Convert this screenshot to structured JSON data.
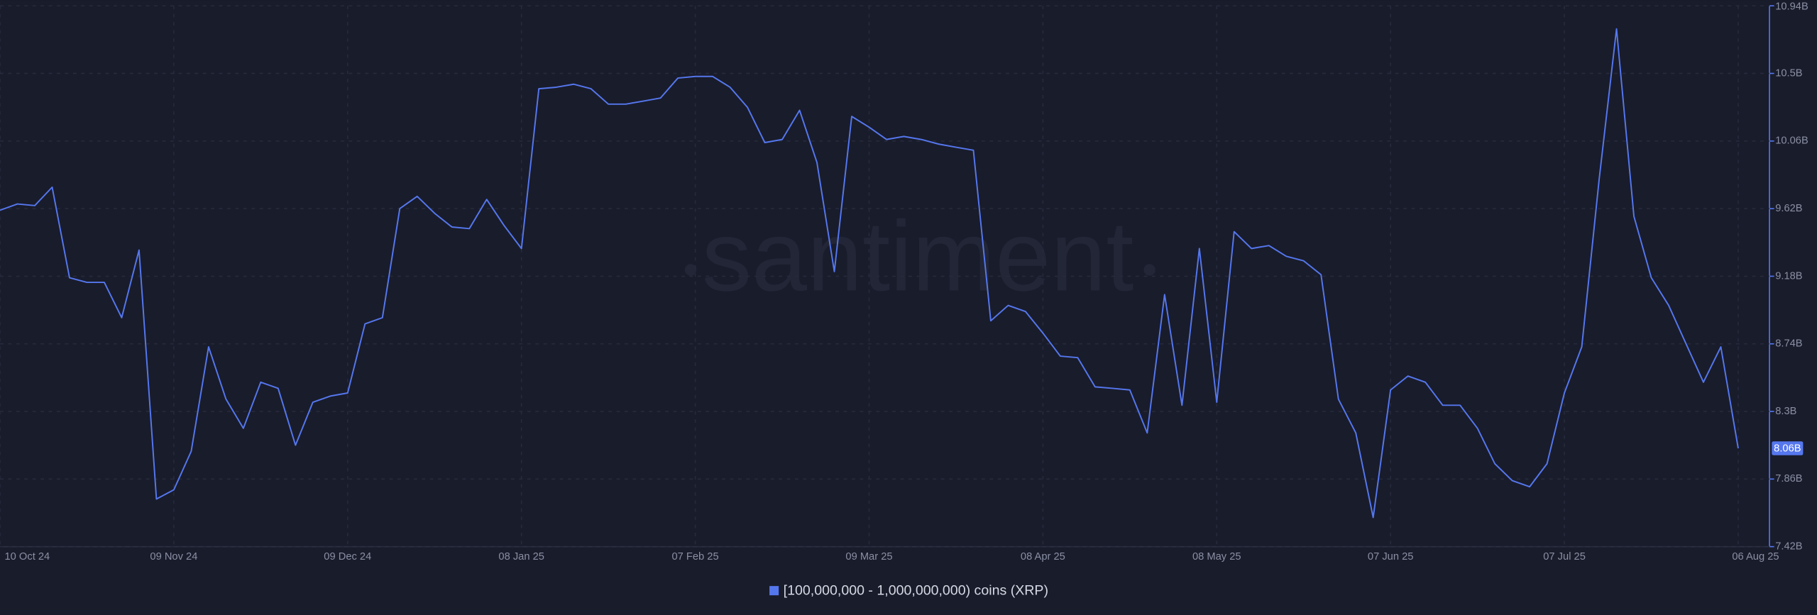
{
  "chart_data": {
    "type": "line",
    "watermark": "santiment",
    "categories": [
      "10 Oct 24",
      null,
      null,
      null,
      null,
      null,
      null,
      null,
      null,
      null,
      "09 Nov 24",
      null,
      null,
      null,
      null,
      null,
      null,
      null,
      null,
      null,
      "09 Dec 24",
      null,
      null,
      null,
      null,
      null,
      null,
      null,
      null,
      null,
      "08 Jan 25",
      null,
      null,
      null,
      null,
      null,
      null,
      null,
      null,
      null,
      "07 Feb 25",
      null,
      null,
      null,
      null,
      null,
      null,
      null,
      null,
      null,
      "09 Mar 25",
      null,
      null,
      null,
      null,
      null,
      null,
      null,
      null,
      null,
      "08 Apr 25",
      null,
      null,
      null,
      null,
      null,
      null,
      null,
      null,
      null,
      "08 May 25",
      null,
      null,
      null,
      null,
      null,
      null,
      null,
      null,
      null,
      "07 Jun 25",
      null,
      null,
      null,
      null,
      null,
      null,
      null,
      null,
      null,
      "07 Jul 25",
      null,
      null,
      null,
      null,
      null,
      null,
      null,
      null,
      null,
      "06 Aug 25"
    ],
    "series": [
      {
        "name": "[100,000,000 - 1,000,000,000) coins (XRP)",
        "color": "#5577ee",
        "values": [
          9.61,
          9.65,
          9.64,
          9.76,
          9.17,
          9.14,
          9.14,
          8.91,
          9.35,
          7.73,
          7.79,
          8.04,
          8.72,
          8.38,
          8.19,
          8.49,
          8.45,
          8.08,
          8.36,
          8.4,
          8.42,
          8.87,
          8.91,
          9.62,
          9.7,
          9.59,
          9.5,
          9.49,
          9.68,
          9.51,
          9.36,
          10.4,
          10.41,
          10.43,
          10.4,
          10.3,
          10.3,
          10.32,
          10.34,
          10.47,
          10.48,
          10.48,
          10.41,
          10.28,
          10.05,
          10.07,
          10.26,
          9.92,
          9.21,
          10.22,
          10.15,
          10.07,
          10.09,
          10.07,
          10.04,
          10.02,
          10.0,
          8.89,
          8.99,
          8.95,
          8.81,
          8.66,
          8.65,
          8.46,
          8.45,
          8.44,
          8.16,
          9.06,
          8.34,
          9.36,
          8.36,
          9.47,
          9.36,
          9.38,
          9.31,
          9.28,
          9.19,
          8.38,
          8.16,
          7.61,
          8.44,
          8.53,
          8.49,
          8.34,
          8.34,
          8.19,
          7.96,
          7.85,
          7.81,
          7.96,
          8.42,
          8.72,
          9.81,
          10.79,
          9.57,
          9.17,
          8.99,
          8.74,
          8.49,
          8.72,
          8.06
        ]
      }
    ],
    "current": {
      "value": 8.06,
      "label": "8.06B"
    },
    "ylim": [
      7.42,
      10.94
    ],
    "yticks": [
      {
        "value": 7.42,
        "label": "7.42B"
      },
      {
        "value": 7.86,
        "label": "7.86B"
      },
      {
        "value": 8.3,
        "label": "8.3B"
      },
      {
        "value": 8.74,
        "label": "8.74B"
      },
      {
        "value": 9.18,
        "label": "9.18B"
      },
      {
        "value": 9.62,
        "label": "9.62B"
      },
      {
        "value": 10.06,
        "label": "10.06B"
      },
      {
        "value": 10.5,
        "label": "10.5B"
      },
      {
        "value": 10.94,
        "label": "10.94B"
      }
    ],
    "grid": true
  }
}
